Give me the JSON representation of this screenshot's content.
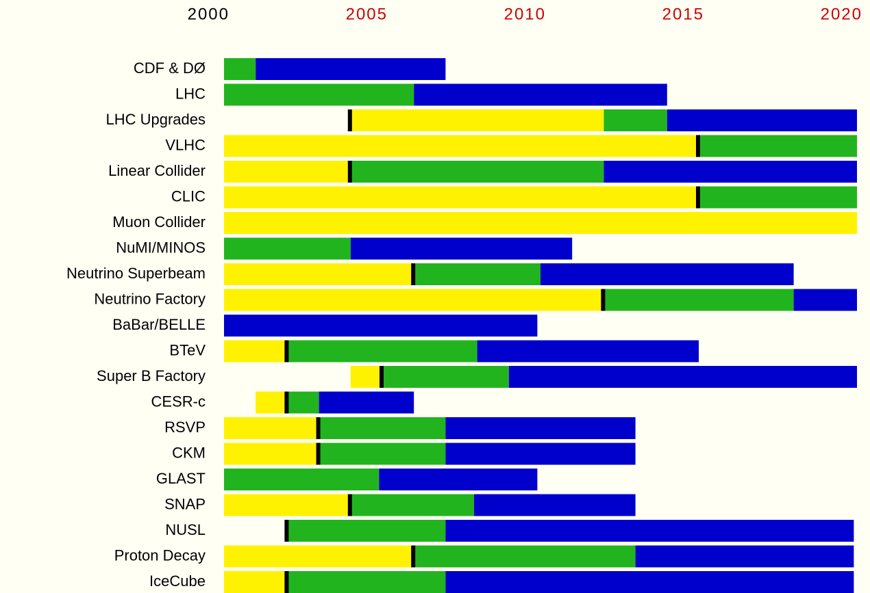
{
  "chart_data": {
    "type": "timeline",
    "xlim": [
      2000,
      2020
    ],
    "xticks": [
      2000,
      2005,
      2010,
      2015,
      2020
    ],
    "xtick_colors": [
      "#000000",
      "#cc0000",
      "#cc0000",
      "#cc0000",
      "#cc0000"
    ],
    "phase_colors": [
      "#fff200",
      "#22b41e",
      "#0000cc"
    ],
    "marker_color": "#000000",
    "rows": [
      {
        "name": "CDF & DØ",
        "segments": [
          {
            "start": 2000,
            "end": 2001,
            "phase": 1
          },
          {
            "start": 2001,
            "end": 2007,
            "phase": 2
          }
        ]
      },
      {
        "name": "LHC",
        "segments": [
          {
            "start": 2000,
            "end": 2006,
            "phase": 1
          },
          {
            "start": 2006,
            "end": 2014,
            "phase": 2
          }
        ]
      },
      {
        "name": "LHC Upgrades",
        "segments": [
          {
            "start": 2004,
            "end": 2012,
            "phase": 0
          },
          {
            "start": 2012,
            "end": 2014,
            "phase": 1
          },
          {
            "start": 2014,
            "end": 2020,
            "phase": 2
          }
        ],
        "marker": 2004
      },
      {
        "name": "VLHC",
        "segments": [
          {
            "start": 2000,
            "end": 2015,
            "phase": 0
          },
          {
            "start": 2015,
            "end": 2020,
            "phase": 1
          }
        ],
        "marker": 2015
      },
      {
        "name": "Linear Collider",
        "segments": [
          {
            "start": 2000,
            "end": 2004,
            "phase": 0
          },
          {
            "start": 2004,
            "end": 2012,
            "phase": 1
          },
          {
            "start": 2012,
            "end": 2020,
            "phase": 2
          }
        ],
        "marker": 2004
      },
      {
        "name": "CLIC",
        "segments": [
          {
            "start": 2000,
            "end": 2015,
            "phase": 0
          },
          {
            "start": 2015,
            "end": 2020,
            "phase": 1
          }
        ],
        "marker": 2015
      },
      {
        "name": "Muon Collider",
        "segments": [
          {
            "start": 2000,
            "end": 2020,
            "phase": 0
          }
        ]
      },
      {
        "name": "NuMI/MINOS",
        "segments": [
          {
            "start": 2000,
            "end": 2004,
            "phase": 1
          },
          {
            "start": 2004,
            "end": 2011,
            "phase": 2
          }
        ]
      },
      {
        "name": "Neutrino Superbeam",
        "segments": [
          {
            "start": 2000,
            "end": 2006,
            "phase": 0
          },
          {
            "start": 2006,
            "end": 2010,
            "phase": 1
          },
          {
            "start": 2010,
            "end": 2018,
            "phase": 2
          }
        ],
        "marker": 2006
      },
      {
        "name": "Neutrino Factory",
        "segments": [
          {
            "start": 2000,
            "end": 2012,
            "phase": 0
          },
          {
            "start": 2012,
            "end": 2018,
            "phase": 1
          },
          {
            "start": 2018,
            "end": 2020,
            "phase": 2
          }
        ],
        "marker": 2012
      },
      {
        "name": "BaBar/BELLE",
        "segments": [
          {
            "start": 2000,
            "end": 2009.9,
            "phase": 2
          }
        ]
      },
      {
        "name": "BTeV",
        "segments": [
          {
            "start": 2000,
            "end": 2002,
            "phase": 0
          },
          {
            "start": 2002,
            "end": 2008,
            "phase": 1
          },
          {
            "start": 2008,
            "end": 2015,
            "phase": 2
          }
        ],
        "marker": 2002
      },
      {
        "name": "Super B Factory",
        "segments": [
          {
            "start": 2004,
            "end": 2005,
            "phase": 0
          },
          {
            "start": 2005,
            "end": 2009,
            "phase": 1
          },
          {
            "start": 2009,
            "end": 2020,
            "phase": 2
          }
        ],
        "marker": 2005
      },
      {
        "name": "CESR-c",
        "segments": [
          {
            "start": 2001,
            "end": 2002,
            "phase": 0
          },
          {
            "start": 2002,
            "end": 2003,
            "phase": 1
          },
          {
            "start": 2003,
            "end": 2006,
            "phase": 2
          }
        ],
        "marker": 2002
      },
      {
        "name": "RSVP",
        "segments": [
          {
            "start": 2000,
            "end": 2003,
            "phase": 0
          },
          {
            "start": 2003,
            "end": 2007,
            "phase": 1
          },
          {
            "start": 2007,
            "end": 2013,
            "phase": 2
          }
        ],
        "marker": 2003
      },
      {
        "name": "CKM",
        "segments": [
          {
            "start": 2000,
            "end": 2003,
            "phase": 0
          },
          {
            "start": 2003,
            "end": 2007,
            "phase": 1
          },
          {
            "start": 2007,
            "end": 2013,
            "phase": 2
          }
        ],
        "marker": 2003
      },
      {
        "name": "GLAST",
        "segments": [
          {
            "start": 2000,
            "end": 2004.9,
            "phase": 1
          },
          {
            "start": 2004.9,
            "end": 2009.9,
            "phase": 2
          }
        ]
      },
      {
        "name": "SNAP",
        "segments": [
          {
            "start": 2000,
            "end": 2004,
            "phase": 0
          },
          {
            "start": 2004,
            "end": 2007.9,
            "phase": 1
          },
          {
            "start": 2007.9,
            "end": 2013,
            "phase": 2
          }
        ],
        "marker": 2004
      },
      {
        "name": "NUSL",
        "segments": [
          {
            "start": 2002,
            "end": 2007,
            "phase": 1
          },
          {
            "start": 2007,
            "end": 2019.9,
            "phase": 2
          }
        ],
        "marker": 2002
      },
      {
        "name": "Proton Decay",
        "segments": [
          {
            "start": 2000,
            "end": 2006,
            "phase": 0
          },
          {
            "start": 2006,
            "end": 2013,
            "phase": 1
          },
          {
            "start": 2013,
            "end": 2019.9,
            "phase": 2
          }
        ],
        "marker": 2006
      },
      {
        "name": "IceCube",
        "segments": [
          {
            "start": 2000,
            "end": 2002,
            "phase": 0
          },
          {
            "start": 2002,
            "end": 2007,
            "phase": 1
          },
          {
            "start": 2007,
            "end": 2019.9,
            "phase": 2
          }
        ],
        "marker": 2002
      }
    ]
  }
}
